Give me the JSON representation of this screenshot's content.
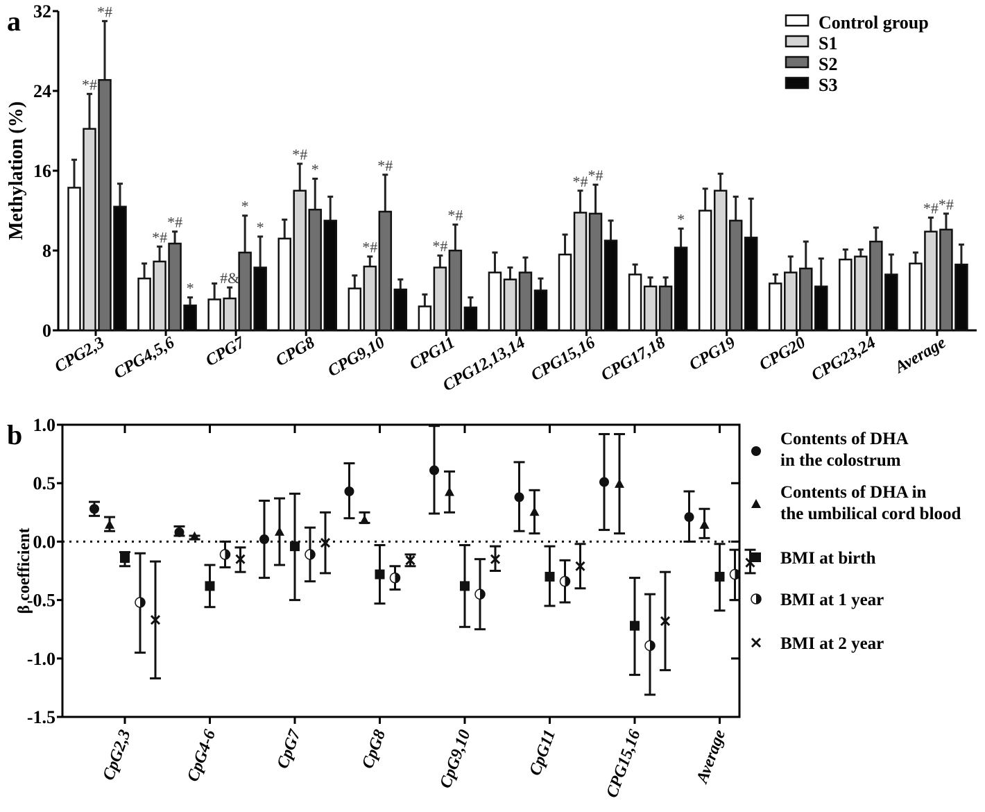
{
  "chart_data": [
    {
      "panel_label": "a",
      "type": "bar",
      "ylabel": "Methylation (%)",
      "xlabel": "",
      "ylim": [
        0,
        32
      ],
      "yticks": [
        "0",
        "8",
        "16",
        "24",
        "32"
      ],
      "ytick_values": [
        0,
        8,
        16,
        24,
        32
      ],
      "legend_position": "top-right",
      "categories": [
        "CPG2,3",
        "CPG4,5,6",
        "CPG7",
        "CPG8",
        "CPG9,10",
        "CPG11",
        "CPG12,13,14",
        "CPG15,16",
        "CPG17,18",
        "CPG19",
        "CPG20",
        "CPG23,24",
        "Average"
      ],
      "series": [
        {
          "name": "Control group",
          "color": "#ffffff",
          "values": [
            14.3,
            5.2,
            3.1,
            9.2,
            4.2,
            2.4,
            5.8,
            7.6,
            5.6,
            12.0,
            4.7,
            7.1,
            6.7
          ],
          "error_upper": [
            17.1,
            6.7,
            4.7,
            11.1,
            5.5,
            3.6,
            7.8,
            9.6,
            6.6,
            14.2,
            5.6,
            8.1,
            7.8
          ],
          "annotations": [
            "",
            "",
            "",
            "",
            "",
            "",
            "",
            "",
            "",
            "",
            "",
            "",
            ""
          ]
        },
        {
          "name": "S1",
          "color": "#d4d4d4",
          "values": [
            20.2,
            6.9,
            3.2,
            14.0,
            6.4,
            6.3,
            5.1,
            11.8,
            4.4,
            14.0,
            5.8,
            7.4,
            9.9
          ],
          "error_upper": [
            23.7,
            8.4,
            4.3,
            16.7,
            7.4,
            7.5,
            6.3,
            14.0,
            5.3,
            15.7,
            7.4,
            8.1,
            11.3
          ],
          "annotations": [
            "*#",
            "*#",
            "#&",
            "*#",
            "*#",
            "*#",
            "",
            "*#",
            "",
            "",
            "",
            "",
            "*#"
          ]
        },
        {
          "name": "S2",
          "color": "#707070",
          "values": [
            25.1,
            8.7,
            7.8,
            12.1,
            11.9,
            8.0,
            5.8,
            11.7,
            4.4,
            11.0,
            6.2,
            8.9,
            10.1
          ],
          "error_upper": [
            31.0,
            9.9,
            11.5,
            15.2,
            15.6,
            10.6,
            7.3,
            14.6,
            5.3,
            13.4,
            8.9,
            10.3,
            11.7
          ],
          "annotations": [
            "*#",
            "*#",
            "*",
            "*",
            "*#",
            "*#",
            "",
            "*#",
            "",
            "",
            "",
            "",
            "*#"
          ]
        },
        {
          "name": "S3",
          "color": "#080808",
          "values": [
            12.4,
            2.5,
            6.3,
            11.0,
            4.1,
            2.3,
            4.0,
            9.0,
            8.3,
            9.3,
            4.4,
            5.6,
            6.6
          ],
          "error_upper": [
            14.7,
            3.3,
            9.4,
            13.4,
            5.1,
            3.3,
            5.2,
            11.0,
            10.2,
            13.2,
            7.2,
            7.6,
            8.6
          ],
          "annotations": [
            "",
            "*",
            "*",
            "",
            "",
            "",
            "",
            "",
            "*",
            "",
            "",
            "",
            ""
          ]
        }
      ]
    },
    {
      "panel_label": "b",
      "type": "scatter",
      "ylabel": "β coefficient",
      "xlabel": "",
      "ylim": [
        -1.5,
        1.0
      ],
      "yticks": [
        "-1.5",
        "-1.0",
        "-0.5",
        "0.0",
        "0.5",
        "1.0"
      ],
      "ytick_values": [
        -1.5,
        -1.0,
        -0.5,
        0.0,
        0.5,
        1.0
      ],
      "reference_line": 0.0,
      "legend_position": "right",
      "categories": [
        "CpG2,3",
        "CpG4-6",
        "CpG7",
        "CpG8",
        "CpG9,10",
        "CpG11",
        "CPG15,16",
        "Average"
      ],
      "series": [
        {
          "name": "Contents of DHA|in the colostrum",
          "marker": "circle",
          "values": [
            0.28,
            0.08,
            0.02,
            0.43,
            0.61,
            0.38,
            0.51,
            0.21
          ],
          "ci_low": [
            0.22,
            0.05,
            -0.31,
            0.2,
            0.24,
            0.09,
            0.1,
            0.0
          ],
          "ci_high": [
            0.34,
            0.13,
            0.35,
            0.67,
            0.99,
            0.68,
            0.92,
            0.43
          ]
        },
        {
          "name": "Contents of DHA in|the umbilical cord blood",
          "marker": "triangle",
          "values": [
            0.14,
            0.04,
            0.08,
            0.18,
            0.42,
            0.25,
            0.49,
            0.14
          ],
          "ci_low": [
            0.09,
            0.02,
            -0.2,
            0.16,
            0.25,
            0.07,
            0.07,
            0.03
          ],
          "ci_high": [
            0.21,
            0.05,
            0.37,
            0.25,
            0.6,
            0.44,
            0.92,
            0.28
          ]
        },
        {
          "name": "BMI at birth",
          "marker": "square",
          "values": [
            -0.14,
            -0.38,
            -0.04,
            -0.28,
            -0.38,
            -0.3,
            -0.72,
            -0.3
          ],
          "ci_low": [
            -0.21,
            -0.56,
            -0.5,
            -0.53,
            -0.73,
            -0.55,
            -1.14,
            -0.59
          ],
          "ci_high": [
            -0.09,
            -0.2,
            0.41,
            -0.03,
            -0.03,
            -0.04,
            -0.31,
            -0.02
          ]
        },
        {
          "name": "BMI at 1 year",
          "marker": "half-circle",
          "values": [
            -0.52,
            -0.11,
            -0.11,
            -0.31,
            -0.45,
            -0.34,
            -0.89,
            -0.28
          ],
          "ci_low": [
            -0.95,
            -0.22,
            -0.34,
            -0.41,
            -0.75,
            -0.52,
            -1.31,
            -0.5
          ],
          "ci_high": [
            -0.1,
            0.0,
            0.12,
            -0.21,
            -0.15,
            -0.16,
            -0.45,
            -0.07
          ]
        },
        {
          "name": "BMI at 2 year",
          "marker": "cross",
          "values": [
            -0.67,
            -0.15,
            -0.01,
            -0.16,
            -0.15,
            -0.21,
            -0.68,
            -0.18
          ],
          "ci_low": [
            -1.17,
            -0.26,
            -0.27,
            -0.21,
            -0.25,
            -0.4,
            -1.1,
            -0.27
          ],
          "ci_high": [
            -0.17,
            -0.05,
            0.25,
            -0.11,
            -0.04,
            -0.02,
            -0.26,
            -0.07
          ]
        }
      ]
    }
  ]
}
